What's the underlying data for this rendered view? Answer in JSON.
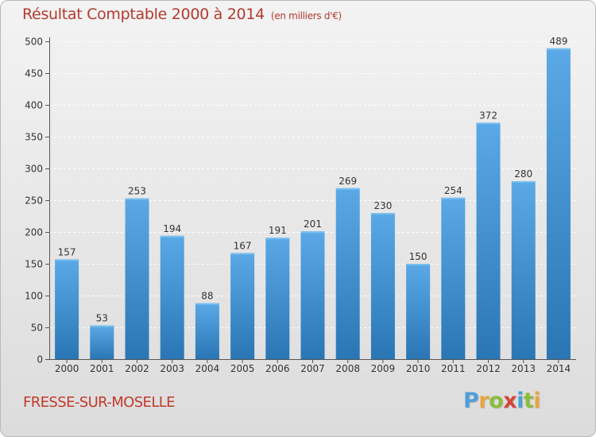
{
  "header": {
    "title": "Résultat Comptable 2000 à 2014",
    "unit": "(en milliers d'€)"
  },
  "footer": {
    "commune": "FRESSE-SUR-MOSELLE",
    "logo_letters": [
      "P",
      "r",
      "o",
      "x",
      "i",
      "t",
      "i"
    ],
    "logo_colors": [
      "#4f9fd8",
      "#e8a53c",
      "#8bbd3c",
      "#d6453a",
      "#4f9fd8",
      "#8bbd3c",
      "#e8a53c"
    ]
  },
  "colors": {
    "bar_light": "#5aa9e6",
    "bar_dark": "#2a76b4",
    "title_red": "#b33a2e",
    "grid": "#ffffff",
    "axis": "#555555"
  },
  "chart_data": {
    "type": "bar",
    "title": "Résultat Comptable 2000 à 2014",
    "subtitle": "(en milliers d'€)",
    "xlabel": "",
    "ylabel": "",
    "categories": [
      "2000",
      "2001",
      "2002",
      "2003",
      "2004",
      "2005",
      "2006",
      "2007",
      "2008",
      "2009",
      "2010",
      "2011",
      "2012",
      "2013",
      "2014"
    ],
    "values": [
      157,
      53,
      253,
      194,
      88,
      167,
      191,
      201,
      269,
      230,
      150,
      254,
      372,
      280,
      489
    ],
    "ylim": [
      0,
      500
    ],
    "yticks": [
      0,
      50,
      100,
      150,
      200,
      250,
      300,
      350,
      400,
      450,
      500
    ],
    "grid": true,
    "legend": "none",
    "data_labels": true
  }
}
